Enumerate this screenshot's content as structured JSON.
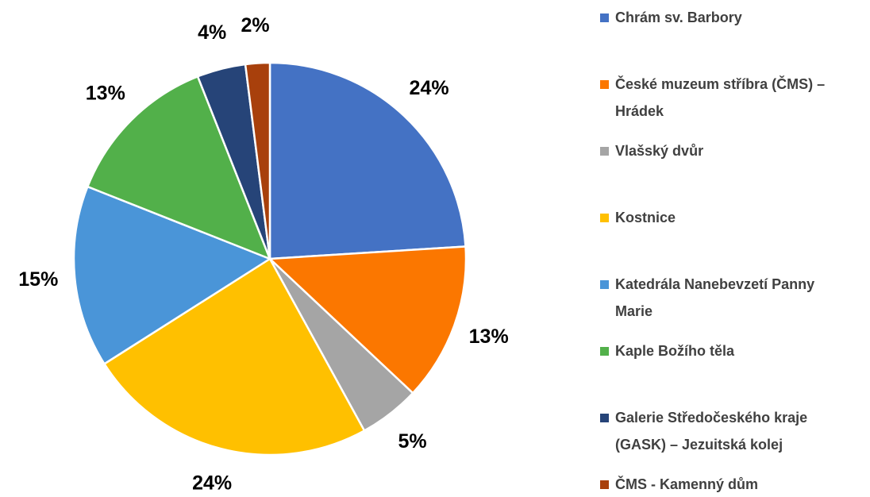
{
  "chart_data": {
    "type": "pie",
    "categories": [
      "Chrám sv. Barbory",
      "České muzeum stříbra (ČMS) – Hrádek",
      "Vlašský dvůr",
      "Kostnice",
      "Katedrála Nanebevzetí Panny Marie",
      "Kaple Božího těla",
      "Galerie Středočeského kraje (GASK) – Jezuitská kolej",
      "ČMS - Kamenný dům"
    ],
    "values": [
      24,
      13,
      5,
      24,
      15,
      13,
      4,
      2
    ],
    "value_labels": [
      "24%",
      "13%",
      "5%",
      "24%",
      "15%",
      "13%",
      "4%",
      "2%"
    ],
    "colors": [
      "#4472c4",
      "#fb7700",
      "#a5a5a5",
      "#ffc000",
      "#4a95d8",
      "#52b04a",
      "#264478",
      "#a8400c"
    ],
    "legend": "right"
  }
}
